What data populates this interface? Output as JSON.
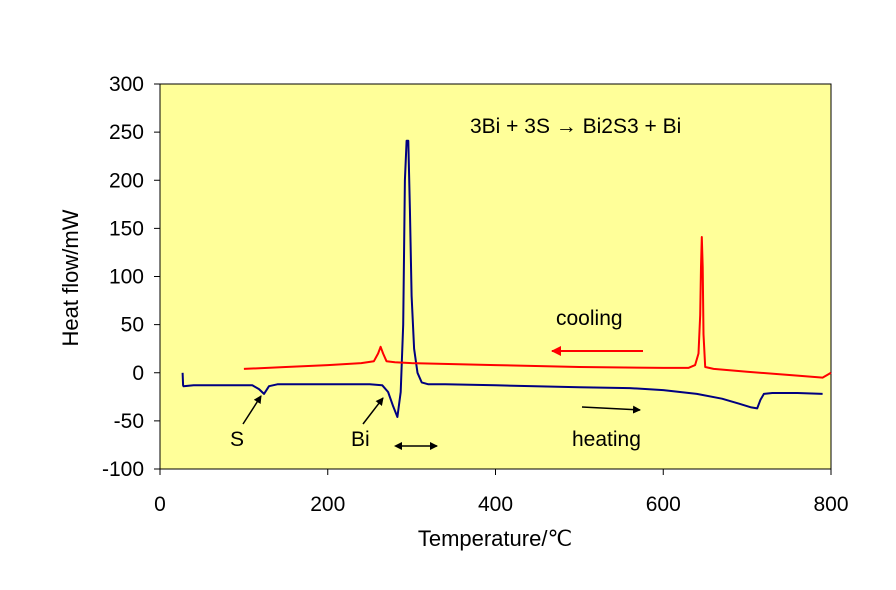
{
  "chart_data": {
    "type": "line",
    "xlabel": "Temperature/℃",
    "ylabel": "Heat flow/mW",
    "xlim": [
      0,
      800
    ],
    "ylim": [
      -100,
      300
    ],
    "xticks": [
      0,
      200,
      400,
      600,
      800
    ],
    "yticks": [
      -100,
      -50,
      0,
      50,
      100,
      150,
      200,
      250,
      300
    ],
    "grid": false,
    "plot_background": "#ffff99",
    "series": [
      {
        "name": "heating",
        "color": "#000080",
        "x": [
          27,
          27.5,
          28,
          40,
          80,
          110,
          118,
          124,
          130,
          140,
          180,
          220,
          250,
          265,
          272,
          278,
          283,
          287,
          290,
          292,
          294,
          296,
          298,
          300,
          303,
          307,
          312,
          320,
          340,
          400,
          500,
          560,
          600,
          640,
          670,
          690,
          705,
          712,
          716,
          720,
          730,
          760,
          790
        ],
        "y": [
          0,
          -13,
          -14,
          -13,
          -13,
          -13,
          -17,
          -22,
          -14,
          -12,
          -12,
          -12,
          -12,
          -13,
          -20,
          -35,
          -46,
          -20,
          50,
          200,
          241,
          241,
          170,
          80,
          25,
          0,
          -10,
          -12,
          -12,
          -13,
          -15,
          -16,
          -18,
          -22,
          -27,
          -32,
          -36,
          -37,
          -28,
          -22,
          -21,
          -21,
          -22
        ]
      },
      {
        "name": "cooling",
        "color": "#ff0000",
        "x": [
          100,
          150,
          200,
          240,
          255,
          260,
          263,
          266,
          270,
          280,
          300,
          400,
          500,
          600,
          630,
          638,
          642,
          644,
          645,
          646,
          647,
          648,
          650,
          660,
          700,
          760,
          790,
          796,
          800
        ],
        "y": [
          4,
          6,
          8,
          10,
          12,
          20,
          27,
          20,
          12,
          11,
          10,
          8,
          6,
          5,
          5,
          8,
          20,
          60,
          110,
          141,
          110,
          40,
          6,
          4,
          1,
          -3,
          -5,
          -2,
          0
        ]
      }
    ],
    "annotations": {
      "equation": "3Bi + 3S → Bi2S3 + Bi",
      "cooling": "cooling",
      "heating": "heating",
      "s_peak": "S",
      "bi_peak": "Bi"
    }
  }
}
